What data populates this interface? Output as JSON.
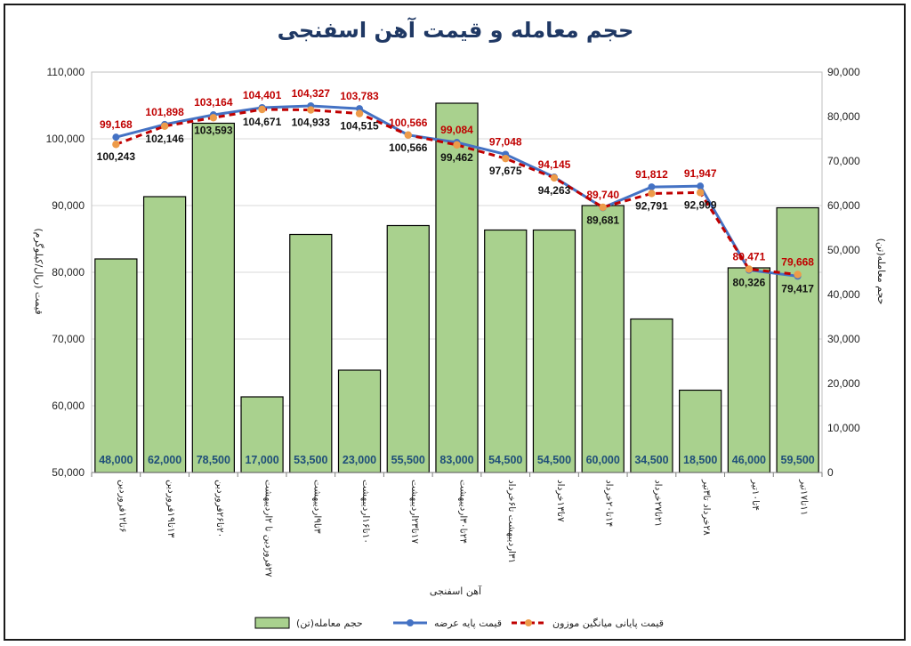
{
  "chart_data": {
    "type": "bar+line",
    "title": "حجم معامله و قیمت آهن اسفنجی",
    "xlabel": "آهن اسفنجی",
    "ylabel_left": "قیمت (ریال/کیلوگرم)",
    "ylabel_right": "حجم معامله(تن)",
    "ylim_left": [
      50000,
      110000
    ],
    "ylim_right": [
      0,
      90000
    ],
    "yticks_left": [
      "50,000",
      "60,000",
      "70,000",
      "80,000",
      "90,000",
      "100,000",
      "110,000"
    ],
    "yticks_right": [
      "0",
      "10,000",
      "20,000",
      "30,000",
      "40,000",
      "50,000",
      "60,000",
      "70,000",
      "80,000",
      "90,000"
    ],
    "grid": true,
    "legend_position": "bottom",
    "categories": [
      "۶تا۱۲فروردین",
      "۱۳تا۱۹فروردین",
      "۲۰تا۲۶فروردین",
      "۲۷فروردین تا ۲اردیبهشت",
      "۳تا۹اردیبهشت",
      "۱۰تا۱۶اردیبهشت",
      "۱۷تا۲۳اردیبهشت",
      "۲۴تا۳۰اردیبهشت",
      "۳۱اردیبهشت تا۶خرداد",
      "۷تا۱۳خرداد",
      "۱۴تا۲۰خرداد",
      "۲۱تا۲۷خرداد",
      "۲۸خرداد تا۳تیر",
      "۴تا۱۰تیر",
      "۱۱تا۱۷تیر"
    ],
    "series": [
      {
        "name": "حجم معامله(تن)",
        "type": "bar",
        "axis": "right",
        "color": "#a9d18e",
        "values": [
          48000,
          62000,
          78500,
          17000,
          53500,
          23000,
          55500,
          83000,
          54500,
          54500,
          60000,
          34500,
          18500,
          46000,
          59500
        ],
        "labels": [
          "48,000",
          "62,000",
          "78,500",
          "17,000",
          "53,500",
          "23,000",
          "55,500",
          "83,000",
          "54,500",
          "54,500",
          "60,000",
          "34,500",
          "18,500",
          "46,000",
          "59,500"
        ]
      },
      {
        "name": "قیمت پایه عرضه",
        "type": "line",
        "axis": "left",
        "color": "#4472c4",
        "values": [
          100243,
          102146,
          103593,
          104671,
          104933,
          104515,
          100566,
          99462,
          97675,
          94263,
          89681,
          92791,
          92909,
          80326,
          79417
        ],
        "labels": [
          "100,243",
          "102,146",
          "103,593",
          "104,671",
          "104,933",
          "104,515",
          "100,566",
          "99,462",
          "97,675",
          "94,263",
          "89,681",
          "92,791",
          "92,909",
          "80,326",
          "79,417"
        ]
      },
      {
        "name": "قیمت پایانی میانگین موزون",
        "type": "line",
        "axis": "left",
        "color": "#c00000",
        "marker_color": "#ed9b4a",
        "values": [
          99168,
          101898,
          103164,
          104401,
          104327,
          103783,
          100566,
          99084,
          97048,
          94145,
          89740,
          91812,
          91947,
          80471,
          79668
        ],
        "labels": [
          "99,168",
          "101,898",
          "103,164",
          "104,401",
          "104,327",
          "103,783",
          "100,566",
          "99,084",
          "97,048",
          "94,145",
          "89,740",
          "91,812",
          "91,947",
          "80,471",
          "79,668"
        ]
      }
    ]
  }
}
